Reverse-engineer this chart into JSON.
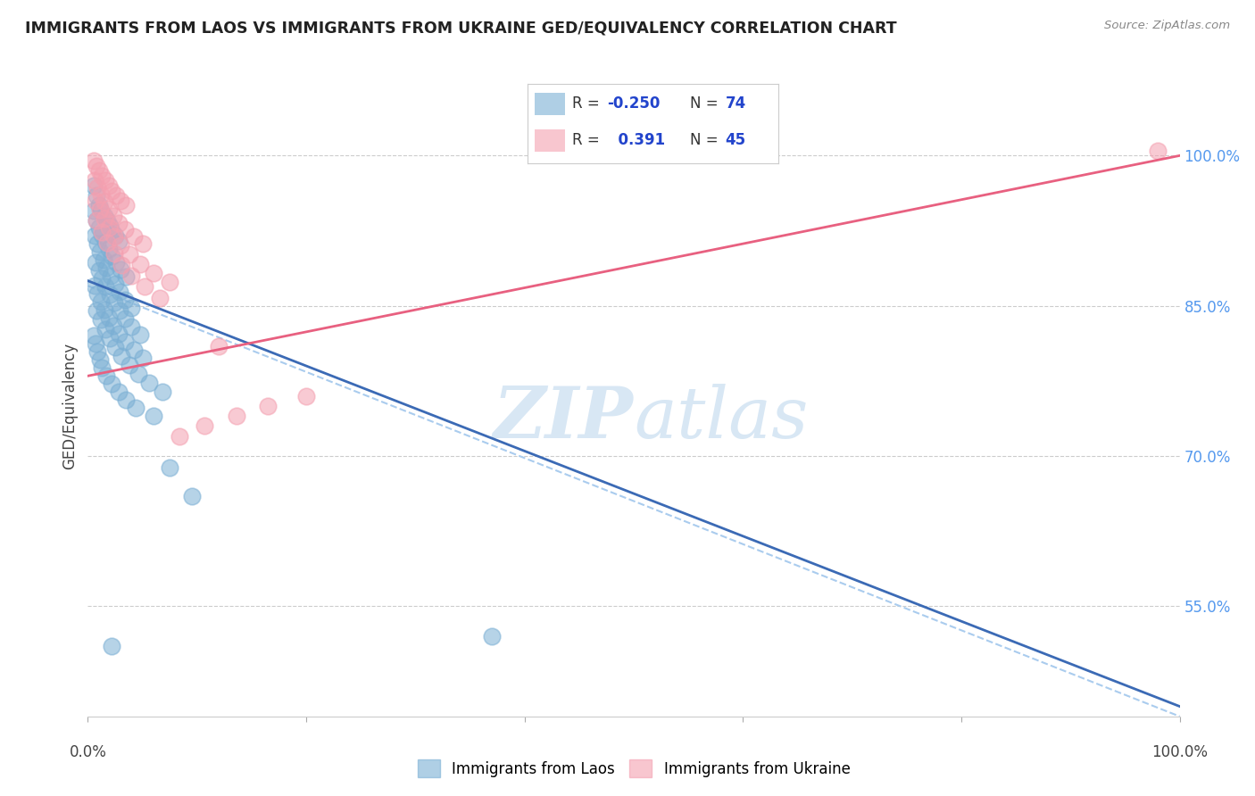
{
  "title": "IMMIGRANTS FROM LAOS VS IMMIGRANTS FROM UKRAINE GED/EQUIVALENCY CORRELATION CHART",
  "source": "Source: ZipAtlas.com",
  "ylabel": "GED/Equivalency",
  "ytick_labels": [
    "100.0%",
    "85.0%",
    "70.0%",
    "55.0%"
  ],
  "ytick_values": [
    1.0,
    0.85,
    0.7,
    0.55
  ],
  "xmin": 0.0,
  "xmax": 1.0,
  "ymin": 0.44,
  "ymax": 1.06,
  "blue_color": "#7BAFD4",
  "pink_color": "#F4A0B0",
  "blue_line_color": "#3B6AB5",
  "pink_line_color": "#E86080",
  "dashed_line_color": "#AACCEE",
  "legend_label_blue": "Immigrants from Laos",
  "legend_label_pink": "Immigrants from Ukraine",
  "blue_scatter_x": [
    0.005,
    0.008,
    0.01,
    0.012,
    0.015,
    0.018,
    0.02,
    0.022,
    0.025,
    0.028,
    0.005,
    0.008,
    0.01,
    0.013,
    0.016,
    0.019,
    0.022,
    0.026,
    0.03,
    0.035,
    0.006,
    0.009,
    0.011,
    0.014,
    0.017,
    0.021,
    0.025,
    0.029,
    0.034,
    0.04,
    0.007,
    0.01,
    0.013,
    0.016,
    0.02,
    0.024,
    0.029,
    0.034,
    0.04,
    0.048,
    0.006,
    0.009,
    0.012,
    0.015,
    0.019,
    0.023,
    0.028,
    0.034,
    0.042,
    0.05,
    0.008,
    0.012,
    0.016,
    0.02,
    0.025,
    0.031,
    0.038,
    0.046,
    0.056,
    0.068,
    0.005,
    0.007,
    0.009,
    0.011,
    0.013,
    0.017,
    0.022,
    0.028,
    0.035,
    0.044,
    0.06,
    0.075,
    0.095,
    0.022,
    0.37
  ],
  "blue_scatter_y": [
    0.97,
    0.96,
    0.95,
    0.945,
    0.94,
    0.935,
    0.93,
    0.925,
    0.92,
    0.915,
    0.945,
    0.935,
    0.928,
    0.921,
    0.914,
    0.907,
    0.9,
    0.893,
    0.886,
    0.879,
    0.92,
    0.912,
    0.904,
    0.896,
    0.888,
    0.88,
    0.872,
    0.864,
    0.856,
    0.848,
    0.893,
    0.885,
    0.877,
    0.869,
    0.861,
    0.853,
    0.845,
    0.837,
    0.829,
    0.821,
    0.87,
    0.862,
    0.854,
    0.846,
    0.838,
    0.83,
    0.822,
    0.814,
    0.806,
    0.798,
    0.845,
    0.836,
    0.827,
    0.818,
    0.809,
    0.8,
    0.791,
    0.782,
    0.773,
    0.764,
    0.82,
    0.812,
    0.804,
    0.796,
    0.788,
    0.78,
    0.772,
    0.764,
    0.756,
    0.748,
    0.74,
    0.688,
    0.66,
    0.51,
    0.52
  ],
  "pink_scatter_x": [
    0.005,
    0.008,
    0.01,
    0.013,
    0.016,
    0.019,
    0.022,
    0.026,
    0.03,
    0.035,
    0.006,
    0.009,
    0.012,
    0.015,
    0.019,
    0.023,
    0.028,
    0.034,
    0.042,
    0.05,
    0.007,
    0.011,
    0.015,
    0.019,
    0.024,
    0.03,
    0.038,
    0.048,
    0.06,
    0.075,
    0.008,
    0.013,
    0.018,
    0.024,
    0.031,
    0.04,
    0.052,
    0.066,
    0.084,
    0.107,
    0.136,
    0.165,
    0.2,
    0.12,
    0.98
  ],
  "pink_scatter_y": [
    0.995,
    0.99,
    0.985,
    0.98,
    0.975,
    0.97,
    0.965,
    0.96,
    0.955,
    0.95,
    0.975,
    0.968,
    0.961,
    0.954,
    0.947,
    0.94,
    0.933,
    0.926,
    0.919,
    0.912,
    0.955,
    0.946,
    0.937,
    0.928,
    0.919,
    0.91,
    0.901,
    0.892,
    0.883,
    0.874,
    0.935,
    0.924,
    0.913,
    0.902,
    0.891,
    0.88,
    0.869,
    0.858,
    0.72,
    0.73,
    0.74,
    0.75,
    0.76,
    0.81,
    1.005
  ],
  "blue_line_x": [
    0.0,
    1.0
  ],
  "blue_line_y": [
    0.875,
    0.45
  ],
  "pink_line_x": [
    0.0,
    1.0
  ],
  "pink_line_y": [
    0.78,
    1.0
  ],
  "dashed_line_x": [
    0.0,
    1.0
  ],
  "dashed_line_y": [
    0.87,
    0.44
  ],
  "xtick_positions": [
    0.0,
    0.2,
    0.4,
    0.6,
    0.8,
    1.0
  ],
  "background_color": "#FFFFFF"
}
